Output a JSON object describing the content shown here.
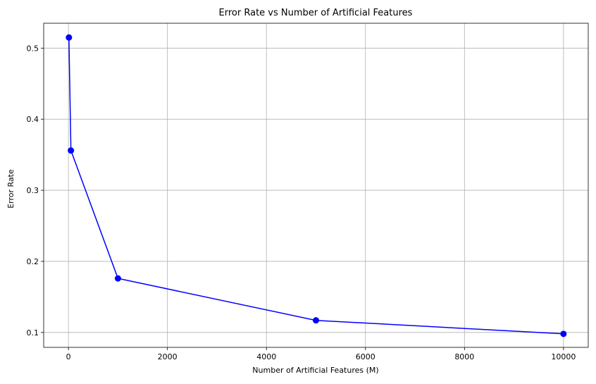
{
  "chart_data": {
    "type": "line",
    "title": "Error Rate vs Number of Artificial Features",
    "xlabel": "Number of Artificial Features (M)",
    "ylabel": "Error Rate",
    "xlim": [
      -500,
      10500
    ],
    "ylim": [
      0.079,
      0.535
    ],
    "xticks": [
      0,
      2000,
      4000,
      6000,
      8000,
      10000
    ],
    "xtick_labels": [
      "0",
      "2000",
      "4000",
      "6000",
      "8000",
      "10000"
    ],
    "yticks": [
      0.1,
      0.2,
      0.3,
      0.4,
      0.5
    ],
    "ytick_labels": [
      "0.1",
      "0.2",
      "0.3",
      "0.4",
      "0.5"
    ],
    "grid": true,
    "series": [
      {
        "color": "#0000ff",
        "marker": "circle",
        "x": [
          10,
          50,
          1000,
          5000,
          10000
        ],
        "y": [
          0.515,
          0.356,
          0.176,
          0.117,
          0.098
        ]
      }
    ]
  }
}
